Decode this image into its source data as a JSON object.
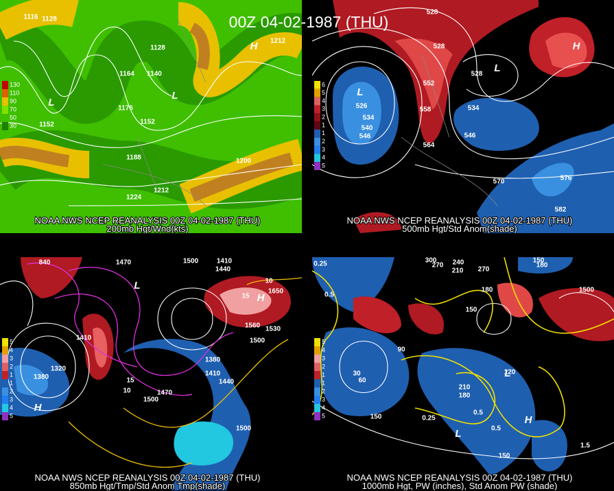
{
  "title": "00Z 04-02-1987 (THU)",
  "panels": [
    {
      "source": "NOAA NWS NCEP REANALYSIS 00Z 04-02-1987 (THU)",
      "subtitle": "200mb Hgt/Wnd(kts)",
      "legend": [
        "130",
        "110",
        "90",
        "70",
        "50",
        "30"
      ],
      "contour_labels": [
        "1116",
        "1128",
        "1128",
        "1212",
        "1164",
        "1140",
        "1176",
        "1152",
        "1152",
        "1188",
        "1200",
        "1212",
        "1224"
      ],
      "centers": [
        "L",
        "L",
        "H"
      ]
    },
    {
      "source": "NOAA NWS NCEP REANALYSIS 00Z 04-02-1987 (THU)",
      "subtitle": "500mb Hgt/Std Anom(shade)",
      "legend": [
        "6",
        "5",
        "4",
        "3",
        "2",
        "1",
        "1",
        "2",
        "3",
        "4",
        "5"
      ],
      "contour_labels": [
        "528",
        "528",
        "552",
        "558",
        "564",
        "546",
        "534",
        "528",
        "526",
        "534",
        "540",
        "546",
        "570",
        "576",
        "582"
      ],
      "centers": [
        "L",
        "L",
        "H"
      ]
    },
    {
      "source": "NOAA NWS NCEP REANALYSIS 00Z 04-02-1987 (THU)",
      "subtitle": "850mb Hgt/Tmp/Std Anom Tmp(shade)",
      "legend": [
        "5",
        "4",
        "3",
        "2",
        "1",
        "1",
        "2",
        "3",
        "4",
        "5"
      ],
      "contour_labels": [
        "840",
        "1470",
        "1500",
        "1410",
        "1440",
        "1410",
        "1320",
        "1380",
        "1380",
        "1410",
        "1440",
        "1470",
        "1500",
        "1500",
        "1560",
        "1530",
        "1650",
        "1500",
        "10",
        "15",
        "10",
        "15"
      ],
      "centers": [
        "L",
        "H",
        "H"
      ]
    },
    {
      "source": "NOAA NWS NCEP REANALYSIS 00Z 04-02-1987 (THU)",
      "subtitle": "1000mb Hgt, PW (inches), Std Anom PW (shade)",
      "legend": [
        "5",
        "4",
        "3",
        "2",
        "1",
        "1",
        "2",
        "3",
        "4",
        "5"
      ],
      "contour_labels": [
        "300",
        "270",
        "240",
        "210",
        "270",
        "150",
        "180",
        "180",
        "150",
        "90",
        "30",
        "60",
        "150",
        "120",
        "180",
        "210",
        "0.25",
        "0.5",
        "0.25",
        "0.5",
        "0.5",
        "1500",
        "1.5",
        "150"
      ],
      "centers": [
        "L",
        "H",
        "L"
      ]
    }
  ]
}
